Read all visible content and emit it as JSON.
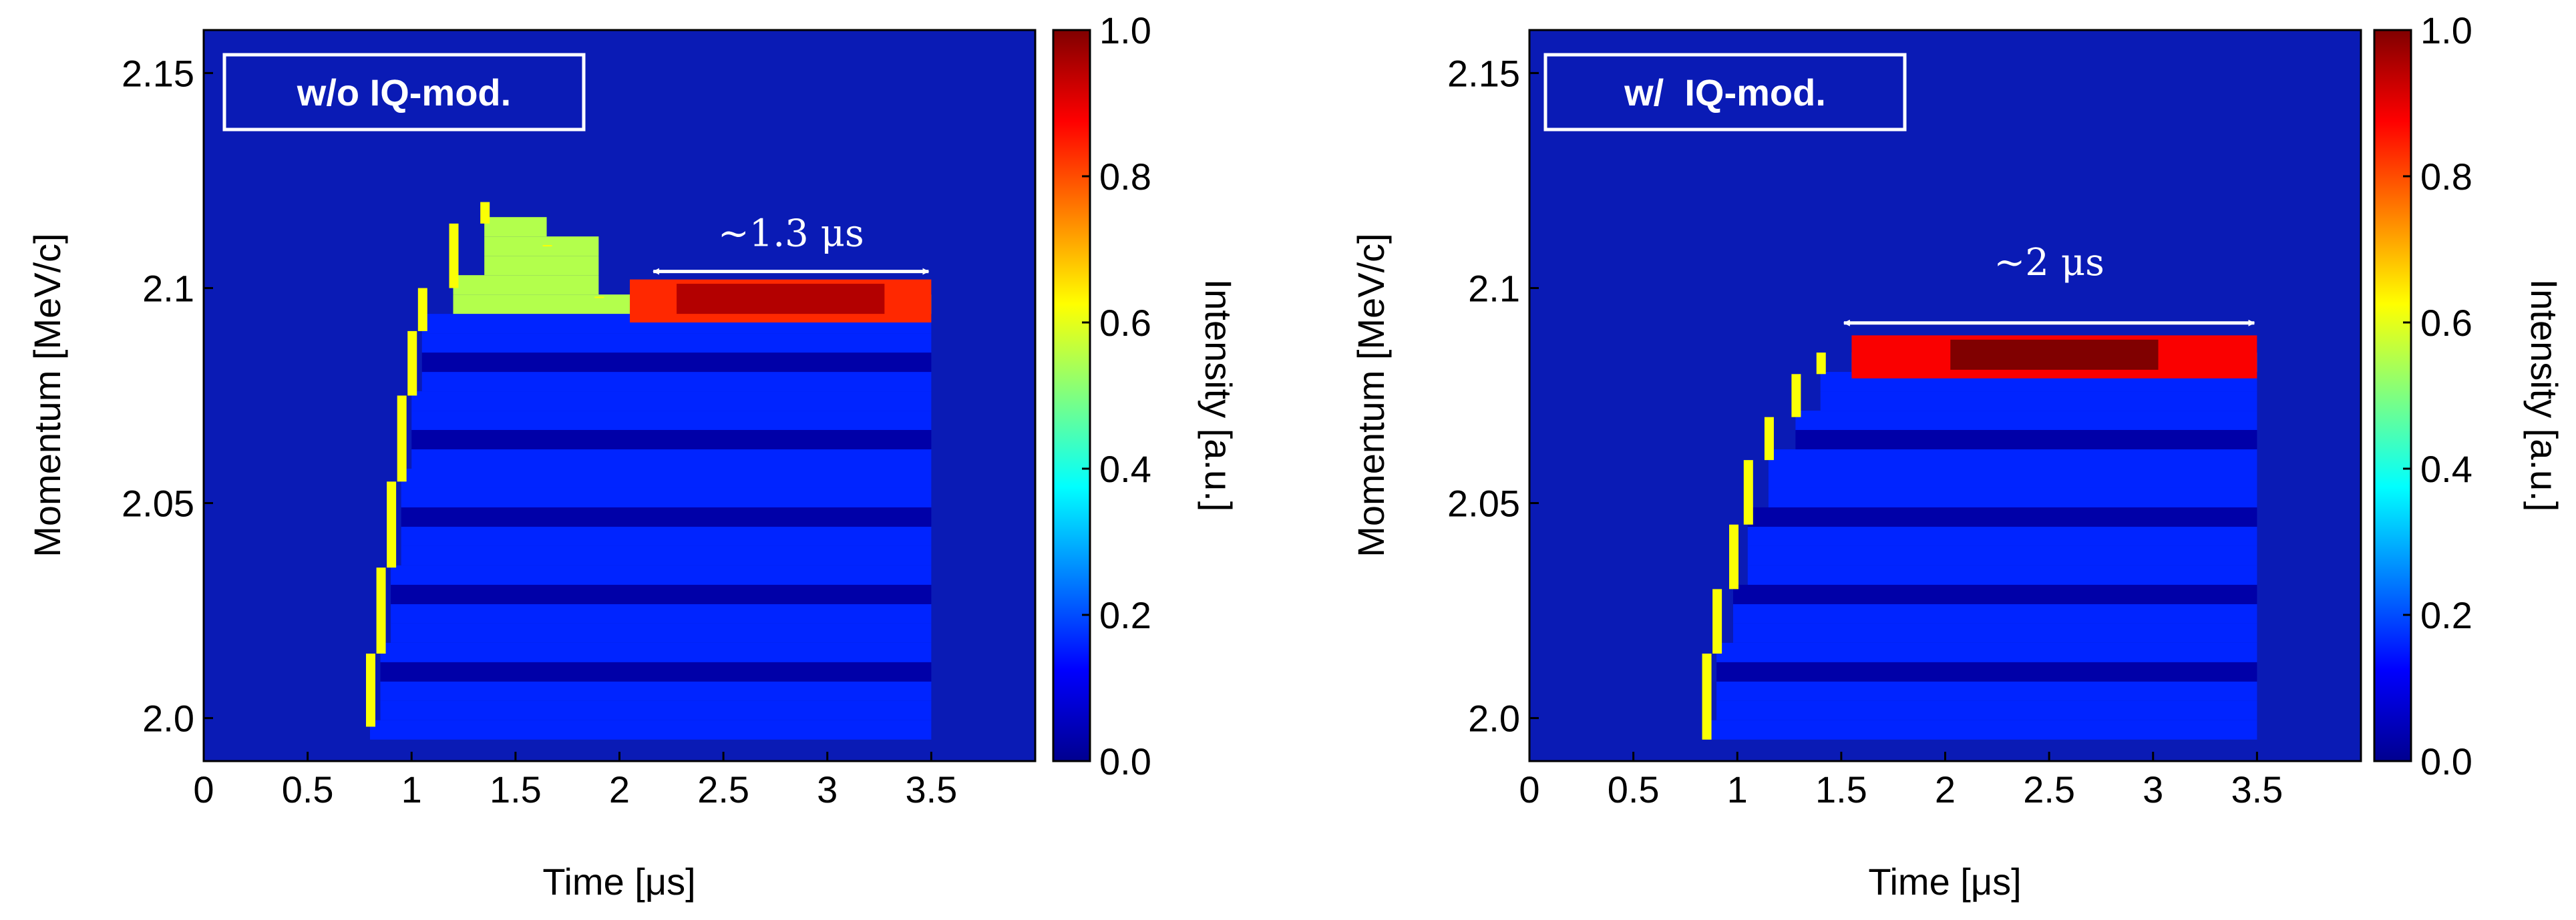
{
  "chart_data": [
    {
      "type": "heatmap",
      "label": "w/o IQ-mod.",
      "xlabel": "Time [μs]",
      "ylabel": "Momentum [MeV/c]",
      "xlim": [
        0,
        4.0
      ],
      "ylim": [
        1.99,
        2.16
      ],
      "xticks": [
        0,
        0.5,
        1,
        1.5,
        2,
        2.5,
        3,
        3.5
      ],
      "xtick_labels": [
        "0",
        "0.5",
        "1",
        "1.5",
        "2",
        "2.5",
        "3",
        "3.5"
      ],
      "yticks": [
        2.0,
        2.05,
        2.1,
        2.15
      ],
      "ytick_labels": [
        "2.0",
        "2.05",
        "2.1",
        "2.15"
      ],
      "colorbar": {
        "label": "Intensity [a.u.]",
        "range": [
          0,
          1
        ],
        "ticks": [
          0,
          0.2,
          0.4,
          0.6,
          0.8,
          1.0
        ],
        "tick_labels": [
          "0.0",
          "0.2",
          "0.4",
          "0.6",
          "0.8",
          "1.0"
        ]
      },
      "annotation": {
        "text": "~1.3 μs",
        "from": 2.15,
        "to": 3.5,
        "y": 2.102
      },
      "band_edges": [
        {
          "x": 0.8,
          "y": 1.998
        },
        {
          "x": 0.85,
          "y": 2.015
        },
        {
          "x": 0.9,
          "y": 2.035
        },
        {
          "x": 0.95,
          "y": 2.055
        },
        {
          "x": 1.0,
          "y": 2.075
        },
        {
          "x": 1.05,
          "y": 2.09
        },
        {
          "x": 1.2,
          "y": 2.1
        },
        {
          "x": 1.35,
          "y": 2.115
        },
        {
          "x": 1.65,
          "y": 2.12
        },
        {
          "x": 1.9,
          "y": 2.11
        },
        {
          "x": 2.05,
          "y": 2.098
        },
        {
          "x": 3.5,
          "y": 2.098
        }
      ],
      "intensity_peak": {
        "x": 2.7,
        "y": 2.096,
        "value": 0.95
      },
      "signal_end": 3.5
    },
    {
      "type": "heatmap",
      "label": "w/  IQ-mod.",
      "xlabel": "Time [μs]",
      "ylabel": "Momentum [MeV/c]",
      "xlim": [
        0,
        4.0
      ],
      "ylim": [
        1.99,
        2.16
      ],
      "xticks": [
        0,
        0.5,
        1,
        1.5,
        2,
        2.5,
        3,
        3.5
      ],
      "xtick_labels": [
        "0",
        "0.5",
        "1",
        "1.5",
        "2",
        "2.5",
        "3",
        "3.5"
      ],
      "yticks": [
        2.0,
        2.05,
        2.1,
        2.15
      ],
      "ytick_labels": [
        "2.0",
        "2.05",
        "2.1",
        "2.15"
      ],
      "colorbar": {
        "label": "Intensity [a.u.]",
        "range": [
          0,
          1
        ],
        "ticks": [
          0,
          0.2,
          0.4,
          0.6,
          0.8,
          1.0
        ],
        "tick_labels": [
          "0.0",
          "0.2",
          "0.4",
          "0.6",
          "0.8",
          "1.0"
        ]
      },
      "annotation": {
        "text": "~2 μs",
        "from": 1.5,
        "to": 3.5,
        "y": 2.088
      },
      "band_edges": [
        {
          "x": 0.85,
          "y": 1.995
        },
        {
          "x": 0.9,
          "y": 2.015
        },
        {
          "x": 0.98,
          "y": 2.03
        },
        {
          "x": 1.05,
          "y": 2.045
        },
        {
          "x": 1.15,
          "y": 2.06
        },
        {
          "x": 1.28,
          "y": 2.07
        },
        {
          "x": 1.4,
          "y": 2.08
        },
        {
          "x": 1.55,
          "y": 2.085
        },
        {
          "x": 3.5,
          "y": 2.085
        }
      ],
      "intensity_peak": {
        "x": 2.5,
        "y": 2.083,
        "value": 1.0
      },
      "signal_end": 3.5
    }
  ]
}
